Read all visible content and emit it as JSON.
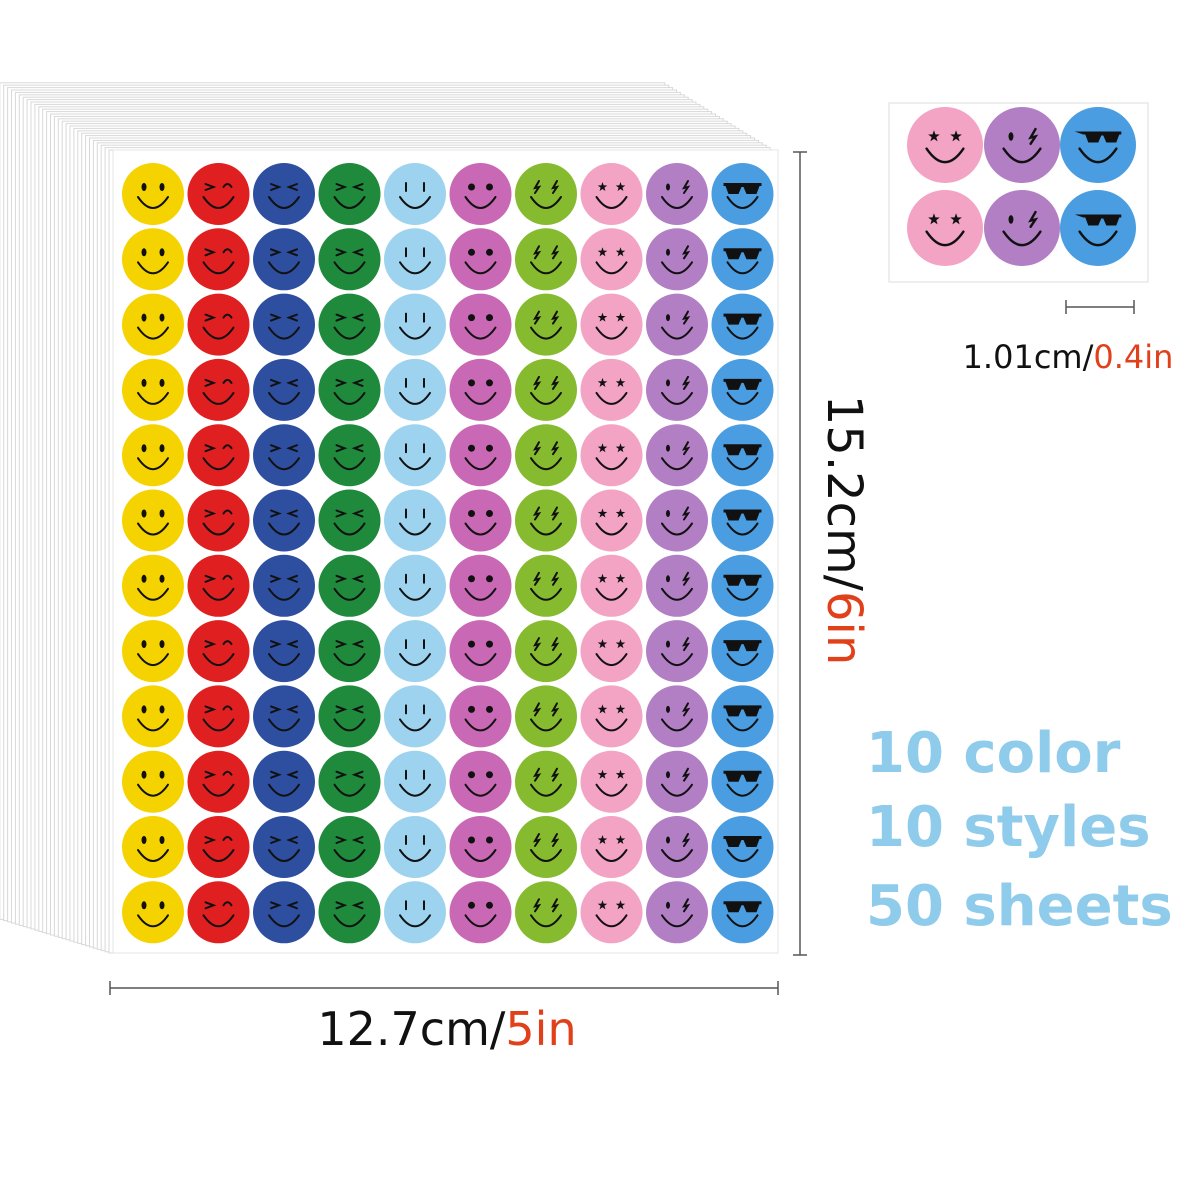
{
  "sample": {
    "size_cm": "1.01cm/",
    "size_in": "0.4in"
  },
  "height": {
    "cm": "15.2cm/",
    "in": "6in"
  },
  "width": {
    "cm": "12.7cm/",
    "in": "5in"
  },
  "features": [
    "10 color",
    "10 styles",
    "50 sheets"
  ]
}
